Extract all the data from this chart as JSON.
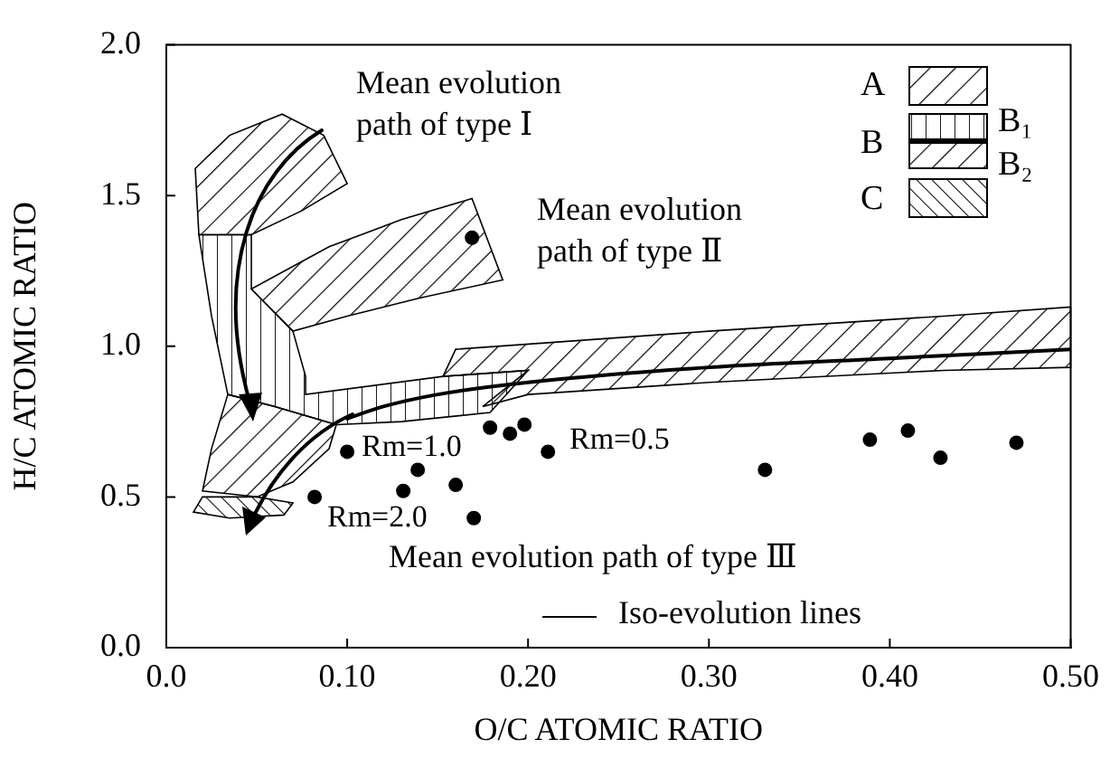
{
  "chart_data": {
    "type": "scatter",
    "xlabel": "O/C ATOMIC RATIO",
    "ylabel": "H/C ATOMIC RATIO",
    "xlim": [
      0,
      0.5
    ],
    "xticks": [
      {
        "value": 0,
        "label": "0.0"
      },
      {
        "value": 0.1,
        "label": "0.10"
      },
      {
        "value": 0.2,
        "label": "0.20"
      },
      {
        "value": 0.3,
        "label": "0.30"
      },
      {
        "value": 0.4,
        "label": "0.40"
      },
      {
        "value": 0.5,
        "label": "0.50"
      }
    ],
    "ylim": [
      0,
      2
    ],
    "yticks": [
      {
        "value": 0,
        "label": "0.0"
      },
      {
        "value": 0.5,
        "label": "0.5"
      },
      {
        "value": 1,
        "label": "1.0"
      },
      {
        "value": 1.5,
        "label": "1.5"
      },
      {
        "value": 2,
        "label": "2.0"
      }
    ],
    "grid": false,
    "legend": false,
    "marker": "circle",
    "series": [
      {
        "color": "#000000",
        "x": [
          0.082,
          0.1,
          0.131,
          0.139,
          0.16,
          0.17,
          0.179,
          0.19,
          0.198,
          0.211,
          0.169,
          0.331,
          0.389,
          0.41,
          0.428,
          0.47
        ],
        "values": [
          0.5,
          0.65,
          0.52,
          0.59,
          0.54,
          0.43,
          0.73,
          0.71,
          0.74,
          0.65,
          1.36,
          0.59,
          0.69,
          0.72,
          0.63,
          0.68
        ]
      },
      {
        "type": "line",
        "color": "#000000",
        "marker": "none",
        "x": [
          0.5,
          0.4,
          0.3,
          0.2,
          0.15,
          0.12,
          0.1
        ],
        "values": [
          0.99,
          0.96,
          0.93,
          0.88,
          0.84,
          0.8,
          0.76
        ]
      }
    ],
    "annotations": [
      "Mean evolution\npath of type Ⅰ",
      "Mean evolution\npath of type Ⅱ",
      "Mean evolution path of type Ⅲ",
      "Rm=1.0",
      "Rm=2.0",
      "Rm=0.5",
      "Iso-evolution lines",
      "A",
      "B",
      "B₁",
      "B₂",
      "C"
    ]
  }
}
